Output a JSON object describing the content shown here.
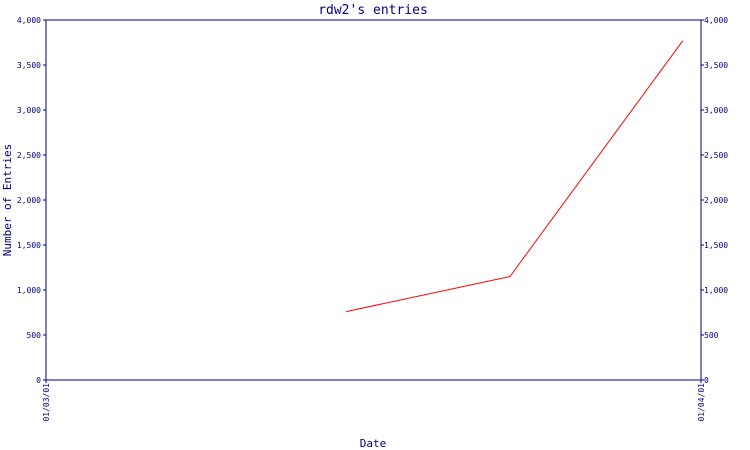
{
  "chart_data": {
    "type": "line",
    "title": "rdw2's entries",
    "xlabel": "Date",
    "ylabel": "Number of Entries",
    "x_ticks": [
      "01/03/01",
      "01/04/01"
    ],
    "xlim": [
      "2001-01-03",
      "2001-01-04"
    ],
    "ylim": [
      0,
      4000
    ],
    "y_ticks": [
      0,
      500,
      1000,
      1500,
      2000,
      2500,
      3000,
      3500,
      4000
    ],
    "y_tick_labels": [
      "0",
      "500",
      "1,000",
      "1,500",
      "2,000",
      "2,500",
      "3,000",
      "3,500",
      "4,000"
    ],
    "right_axis": true,
    "grid": false,
    "colors": {
      "axis": "#000080",
      "line": "#ff0000"
    },
    "series": [
      {
        "x": [
          "2001-01-03 11:00",
          "2001-01-03 17:00",
          "2001-01-03 23:20"
        ],
        "values": [
          760,
          1150,
          3770
        ]
      }
    ]
  }
}
